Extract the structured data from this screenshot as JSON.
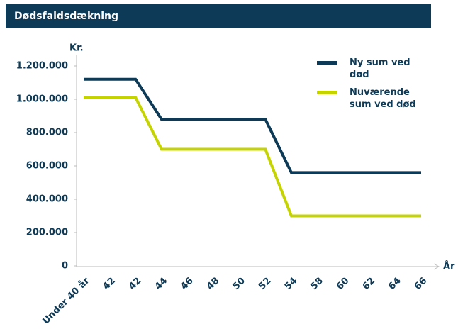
{
  "header": {
    "title": "Dødsfaldsdækning"
  },
  "chart_data": {
    "type": "line",
    "ylabel": "Kr.",
    "xlabel": "År",
    "categories": [
      "Under 40 år",
      "42",
      "42",
      "44",
      "46",
      "48",
      "50",
      "52",
      "54",
      "58",
      "60",
      "62",
      "64",
      "66"
    ],
    "series": [
      {
        "name": "Ny sum ved død",
        "color": "#0d3a57",
        "values": [
          1120000,
          1120000,
          1120000,
          880000,
          880000,
          880000,
          880000,
          880000,
          560000,
          560000,
          560000,
          560000,
          560000,
          560000
        ]
      },
      {
        "name": "Nuværende sum ved død",
        "color": "#c5d400",
        "values": [
          1010000,
          1010000,
          1010000,
          700000,
          700000,
          700000,
          700000,
          700000,
          300000,
          300000,
          300000,
          300000,
          300000,
          300000
        ]
      }
    ],
    "ylim": [
      0,
      1200000
    ],
    "yticks": [
      0,
      {
        "value": 200000,
        "label": "200.000"
      },
      {
        "value": 400000,
        "label": "400.000"
      },
      {
        "value": 600000,
        "label": "600.000"
      },
      {
        "value": 800000,
        "label": "800.000"
      },
      {
        "value": 1000000,
        "label": "1.000.000"
      },
      {
        "value": 1200000,
        "label": "1.200.000"
      }
    ],
    "legend": "top-right"
  }
}
